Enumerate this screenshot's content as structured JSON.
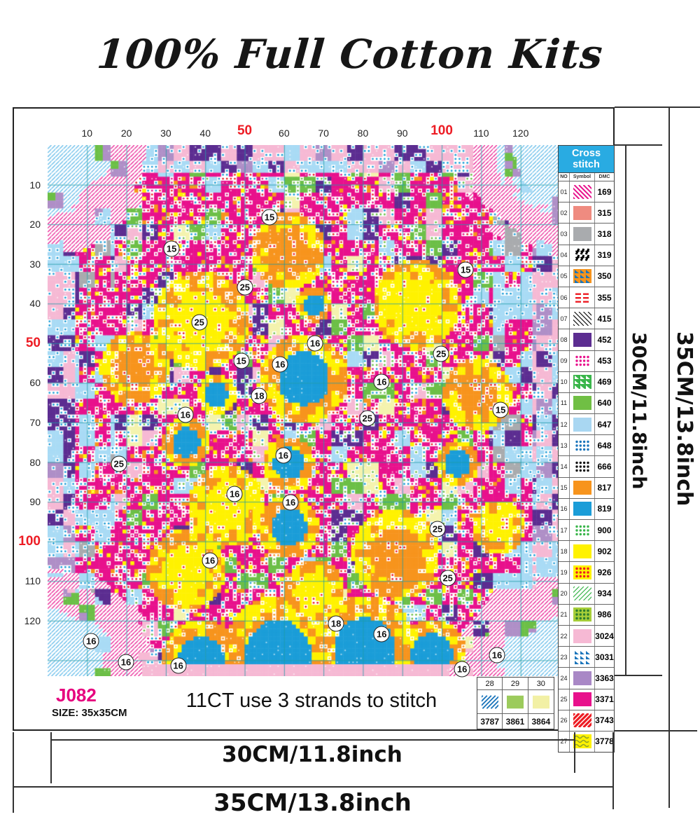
{
  "title": "100% Full Cotton Kits",
  "ruler": {
    "values": [
      10,
      20,
      30,
      40,
      50,
      60,
      70,
      80,
      90,
      100,
      110,
      120
    ],
    "highlighted": [
      50,
      100
    ],
    "highlight_color": "#ED1C24"
  },
  "legend": {
    "header": "Cross stitch",
    "header_bg": "#29ABE2",
    "columns": [
      "NO",
      "Symbol",
      "DMC"
    ],
    "entries": [
      {
        "no": "01",
        "dmc": "169",
        "sym": {
          "type": "diag",
          "fg": "#E8118C",
          "bg": "#FFFFFF",
          "angle": "down"
        }
      },
      {
        "no": "02",
        "dmc": "315",
        "sym": {
          "type": "solid",
          "bg": "#EF8B80"
        }
      },
      {
        "no": "03",
        "dmc": "318",
        "sym": {
          "type": "solid",
          "bg": "#A9ABAE"
        }
      },
      {
        "no": "04",
        "dmc": "319",
        "sym": {
          "type": "glyph",
          "fg": "#000000",
          "bg": "#FFFFFF"
        }
      },
      {
        "no": "05",
        "dmc": "350",
        "sym": {
          "type": "tri",
          "fg": "#1B75BB",
          "bg": "#F7941D"
        }
      },
      {
        "no": "06",
        "dmc": "355",
        "sym": {
          "type": "dashes",
          "fg": "#ED1C24",
          "bg": "#FFFFFF"
        }
      },
      {
        "no": "07",
        "dmc": "415",
        "sym": {
          "type": "diag",
          "fg": "#111111",
          "bg": "#FFFFFF",
          "angle": "down",
          "thin": true
        }
      },
      {
        "no": "08",
        "dmc": "452",
        "sym": {
          "type": "solid",
          "bg": "#5C2D91"
        }
      },
      {
        "no": "09",
        "dmc": "453",
        "sym": {
          "type": "dots",
          "fg": "#E8118C",
          "bg": "#FFFFFF"
        }
      },
      {
        "no": "10",
        "dmc": "469",
        "sym": {
          "type": "tri",
          "fg": "#FFFFFF",
          "bg": "#39B54A"
        }
      },
      {
        "no": "11",
        "dmc": "640",
        "sym": {
          "type": "solid",
          "bg": "#70BF44"
        }
      },
      {
        "no": "12",
        "dmc": "647",
        "sym": {
          "type": "solid",
          "bg": "#A9D7F2"
        }
      },
      {
        "no": "13",
        "dmc": "648",
        "sym": {
          "type": "dots",
          "fg": "#1B75BB",
          "bg": "#FFFFFF"
        }
      },
      {
        "no": "14",
        "dmc": "666",
        "sym": {
          "type": "dots",
          "fg": "#111111",
          "bg": "#FFFFFF"
        }
      },
      {
        "no": "15",
        "dmc": "817",
        "sym": {
          "type": "solid",
          "bg": "#F7941D"
        }
      },
      {
        "no": "16",
        "dmc": "819",
        "sym": {
          "type": "solid",
          "bg": "#1B9DD8"
        }
      },
      {
        "no": "17",
        "dmc": "900",
        "sym": {
          "type": "dots",
          "fg": "#39B54A",
          "bg": "#FFFFFF"
        }
      },
      {
        "no": "18",
        "dmc": "902",
        "sym": {
          "type": "solid",
          "bg": "#FFF200"
        }
      },
      {
        "no": "19",
        "dmc": "926",
        "sym": {
          "type": "dots",
          "fg": "#ED1C24",
          "bg": "#FFF200"
        }
      },
      {
        "no": "20",
        "dmc": "934",
        "sym": {
          "type": "diag",
          "fg": "#39B54A",
          "bg": "#FFFFFF",
          "angle": "up",
          "thin": true
        }
      },
      {
        "no": "21",
        "dmc": "986",
        "sym": {
          "type": "dots",
          "fg": "#2D7D2F",
          "bg": "#A6CE39"
        }
      },
      {
        "no": "22",
        "dmc": "3024",
        "sym": {
          "type": "solid",
          "bg": "#F6B9D4"
        }
      },
      {
        "no": "23",
        "dmc": "3031",
        "sym": {
          "type": "tri",
          "fg": "#1B75BB",
          "bg": "#FFFFFF"
        }
      },
      {
        "no": "24",
        "dmc": "3363",
        "sym": {
          "type": "solid",
          "bg": "#A988C6"
        }
      },
      {
        "no": "25",
        "dmc": "3371",
        "sym": {
          "type": "solid",
          "bg": "#E8118C"
        }
      },
      {
        "no": "26",
        "dmc": "3743",
        "sym": {
          "type": "diag",
          "fg": "#ED1C24",
          "bg": "#FFFFFF",
          "angle": "up",
          "bold": true
        }
      },
      {
        "no": "27",
        "dmc": "3778",
        "sym": {
          "type": "wave",
          "fg": "#8FA32A",
          "bg": "#FFF200"
        }
      }
    ]
  },
  "extra_table": {
    "entries": [
      {
        "no": "28",
        "dmc": "3787",
        "sym": {
          "type": "diag",
          "fg": "#1B75BB",
          "bg": "#FFFFFF",
          "angle": "up"
        }
      },
      {
        "no": "29",
        "dmc": "3861",
        "sym": {
          "type": "solid",
          "bg": "#9CCB5C"
        }
      },
      {
        "no": "30",
        "dmc": "3864",
        "sym": {
          "type": "solid",
          "bg": "#F2F0A5"
        }
      }
    ]
  },
  "info": {
    "code": "J082",
    "code_color": "#E6007E",
    "size_label": "SIZE: 35x35CM",
    "stitch_note": "11CT use 3 strands to stitch"
  },
  "dimensions": {
    "outer_height": "35CM/13.8inch",
    "inner_height": "30CM/11.8inch",
    "inner_width": "30CM/11.8inch",
    "outer_width": "35CM/13.8inch"
  },
  "chart": {
    "cols": 130,
    "rows": 134,
    "grid_step": 10,
    "palette": {
      "white": "#FFFFFF",
      "magenta": "#E8118C",
      "yellow": "#FFF200",
      "orange": "#F7941D",
      "blue": "#1B9DD8",
      "lightblue": "#A9DBF5",
      "hatchblue": "#58B7E8",
      "pink": "#F6B9D4",
      "purple": "#5C2D91",
      "green": "#6CBF47",
      "paleyellow": "#F4F3AE",
      "lilac": "#AF8FC7",
      "gray": "#A9ABAE",
      "red": "#ED1C24",
      "grid": "#1E9BA8"
    },
    "flowers": [
      [
        0.5,
        0.44,
        0.1,
        "blue"
      ],
      [
        0.47,
        0.2,
        0.085,
        "orange"
      ],
      [
        0.3,
        0.33,
        0.11,
        "yellow"
      ],
      [
        0.72,
        0.3,
        0.1,
        "yellow"
      ],
      [
        0.84,
        0.47,
        0.08,
        "orange"
      ],
      [
        0.17,
        0.42,
        0.08,
        "orange"
      ],
      [
        0.27,
        0.56,
        0.055,
        "blue"
      ],
      [
        0.8,
        0.6,
        0.05,
        "blue"
      ],
      [
        0.35,
        0.68,
        0.09,
        "yellow"
      ],
      [
        0.47,
        0.6,
        0.06,
        "blue"
      ],
      [
        0.47,
        0.72,
        0.07,
        "blue"
      ],
      [
        0.27,
        0.8,
        0.09,
        "yellow"
      ],
      [
        0.68,
        0.77,
        0.1,
        "orange"
      ],
      [
        0.88,
        0.72,
        0.06,
        "yellow"
      ],
      [
        0.52,
        0.84,
        0.07,
        "yellow"
      ],
      [
        0.33,
        0.47,
        0.045,
        "blue"
      ],
      [
        0.52,
        0.3,
        0.04,
        "blue"
      ],
      [
        0.45,
        0.96,
        0.13,
        "blue"
      ],
      [
        0.62,
        0.95,
        0.12,
        "blue"
      ],
      [
        0.3,
        0.97,
        0.09,
        "blue"
      ],
      [
        0.75,
        0.96,
        0.08,
        "blue"
      ]
    ],
    "markers": [
      {
        "n": "15",
        "x": 43.3,
        "y": 13.6
      },
      {
        "n": "15",
        "x": 24.2,
        "y": 19.5
      },
      {
        "n": "15",
        "x": 81.6,
        "y": 23.5
      },
      {
        "n": "25",
        "x": 38.5,
        "y": 26.8
      },
      {
        "n": "25",
        "x": 29.6,
        "y": 33.4
      },
      {
        "n": "16",
        "x": 52.2,
        "y": 37.3
      },
      {
        "n": "16",
        "x": 45.4,
        "y": 41.3
      },
      {
        "n": "25",
        "x": 76.8,
        "y": 39.3
      },
      {
        "n": "15",
        "x": 37.8,
        "y": 40.6
      },
      {
        "n": "18",
        "x": 41.3,
        "y": 47.2
      },
      {
        "n": "16",
        "x": 65.2,
        "y": 44.6
      },
      {
        "n": "25",
        "x": 62.4,
        "y": 51.5
      },
      {
        "n": "16",
        "x": 26.9,
        "y": 50.8
      },
      {
        "n": "15",
        "x": 88.4,
        "y": 49.9
      },
      {
        "n": "25",
        "x": 13.9,
        "y": 60.0
      },
      {
        "n": "16",
        "x": 46.0,
        "y": 58.4
      },
      {
        "n": "16",
        "x": 36.5,
        "y": 65.7
      },
      {
        "n": "16",
        "x": 47.4,
        "y": 67.3
      },
      {
        "n": "25",
        "x": 76.1,
        "y": 72.3
      },
      {
        "n": "16",
        "x": 31.7,
        "y": 78.2
      },
      {
        "n": "25",
        "x": 78.1,
        "y": 81.5
      },
      {
        "n": "18",
        "x": 56.3,
        "y": 90.1
      },
      {
        "n": "16",
        "x": 65.2,
        "y": 92.1
      },
      {
        "n": "16",
        "x": 8.5,
        "y": 93.4
      },
      {
        "n": "16",
        "x": 15.3,
        "y": 97.4
      },
      {
        "n": "16",
        "x": 25.5,
        "y": 98.0
      },
      {
        "n": "16",
        "x": 87.7,
        "y": 96.0
      },
      {
        "n": "16",
        "x": 80.9,
        "y": 98.7
      }
    ]
  }
}
